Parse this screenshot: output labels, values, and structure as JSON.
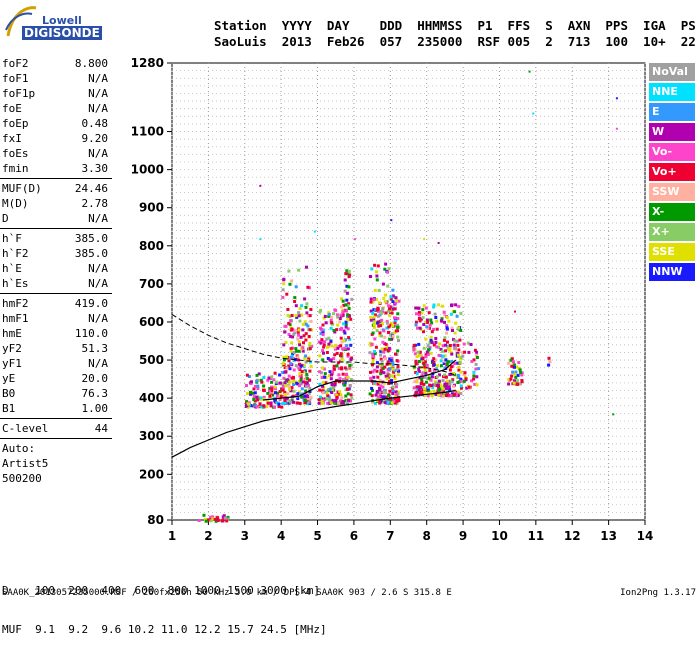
{
  "logo": {
    "line1": "Lowell",
    "line2": "DIGISONDE"
  },
  "header": {
    "labels": [
      "Station",
      "YYYY",
      "DAY",
      "DDD",
      "HHMMSS",
      "P1",
      "FFS",
      "S",
      "AXN",
      "PPS",
      "IGA",
      "PS"
    ],
    "values": [
      "SaoLuis",
      "2013",
      "Feb26",
      "057",
      "235000",
      "RSF",
      "005",
      "2",
      "713",
      "100",
      "10+",
      "22"
    ]
  },
  "params": {
    "group1": [
      {
        "name": "foF2",
        "value": "8.800"
      },
      {
        "name": "foF1",
        "value": "N/A"
      },
      {
        "name": "foF1p",
        "value": "N/A"
      },
      {
        "name": "foE",
        "value": "N/A"
      },
      {
        "name": "foEp",
        "value": "0.48"
      },
      {
        "name": "fxI",
        "value": "9.20"
      },
      {
        "name": "foEs",
        "value": "N/A"
      },
      {
        "name": "fmin",
        "value": "3.30"
      }
    ],
    "group2": [
      {
        "name": "MUF(D)",
        "value": "24.46"
      },
      {
        "name": "M(D)",
        "value": "2.78"
      },
      {
        "name": "D",
        "value": "N/A"
      }
    ],
    "group3": [
      {
        "name": "h`F",
        "value": "385.0"
      },
      {
        "name": "h`F2",
        "value": "385.0"
      },
      {
        "name": "h`E",
        "value": "N/A"
      },
      {
        "name": "h`Es",
        "value": "N/A"
      }
    ],
    "group4": [
      {
        "name": "hmF2",
        "value": "419.0"
      },
      {
        "name": "hmF1",
        "value": "N/A"
      },
      {
        "name": "hmE",
        "value": "110.0"
      },
      {
        "name": "yF2",
        "value": "51.3"
      },
      {
        "name": "yF1",
        "value": "N/A"
      },
      {
        "name": "yE",
        "value": "20.0"
      },
      {
        "name": "B0",
        "value": "76.3"
      },
      {
        "name": "B1",
        "value": "1.00"
      }
    ],
    "group5": [
      {
        "name": "C-level",
        "value": "44"
      }
    ],
    "auto": [
      "Auto:",
      "Artist5",
      "500200"
    ]
  },
  "legend": [
    {
      "label": "NoVal",
      "color": "#a0a0a0"
    },
    {
      "label": "NNE",
      "color": "#00e0ff"
    },
    {
      "label": "E",
      "color": "#3399ff"
    },
    {
      "label": "W",
      "color": "#b000b0"
    },
    {
      "label": "Vo-",
      "color": "#ff44cc"
    },
    {
      "label": "Vo+",
      "color": "#ee0033"
    },
    {
      "label": "SSW",
      "color": "#ffb0a0"
    },
    {
      "label": "X-",
      "color": "#009900"
    },
    {
      "label": "X+",
      "color": "#88cc66"
    },
    {
      "label": "SSE",
      "color": "#e0e000"
    },
    {
      "label": "NNW",
      "color": "#1a1aff"
    }
  ],
  "muf_table": {
    "d_label": "D",
    "d_values": [
      "100",
      "200",
      "400",
      "600",
      "800",
      "1000",
      "1500",
      "3000"
    ],
    "d_unit": "[km]",
    "muf_label": "MUF",
    "muf_values": [
      "9.1",
      "9.2",
      "9.6",
      "10.2",
      "11.0",
      "12.2",
      "15.7",
      "24.5"
    ],
    "muf_unit": "[MHz]"
  },
  "footer": "SAA0K_2013057235000.RSF / 260fx256h 50 kHz 5.0 km / DPS-4 SAA0K 903 / 2.6 S 315.8 E",
  "version": "Ion2Png 1.3.17",
  "chart_data": {
    "type": "scatter",
    "xlim": [
      1,
      14
    ],
    "ylim": [
      80,
      1280
    ],
    "xticks": [
      "1",
      "2",
      "3",
      "4",
      "5",
      "6",
      "7",
      "8",
      "9",
      "10",
      "11",
      "12",
      "13",
      "14"
    ],
    "yticks": [
      {
        "v": 80,
        "label": "80"
      },
      {
        "v": 200,
        "label": "200"
      },
      {
        "v": 300,
        "label": "300"
      },
      {
        "v": 400,
        "label": "400"
      },
      {
        "v": 500,
        "label": "500"
      },
      {
        "v": 600,
        "label": "600"
      },
      {
        "v": 700,
        "label": "700"
      },
      {
        "v": 800,
        "label": "800"
      },
      {
        "v": 900,
        "label": "900"
      },
      {
        "v": 1000,
        "label": "1000"
      },
      {
        "v": 1100,
        "label": "1100"
      },
      {
        "v": 1280,
        "label": "1280"
      }
    ],
    "grid": true,
    "clusters": [
      {
        "f0": 1.7,
        "f1": 2.5,
        "h0": 80,
        "h1": 100,
        "n": 30
      },
      {
        "f0": 3.0,
        "f1": 4.0,
        "h0": 380,
        "h1": 470,
        "n": 130
      },
      {
        "f0": 4.0,
        "f1": 4.8,
        "h0": 390,
        "h1": 620,
        "n": 230
      },
      {
        "f0": 4.0,
        "f1": 4.8,
        "h0": 620,
        "h1": 760,
        "n": 35
      },
      {
        "f0": 5.0,
        "f1": 5.9,
        "h0": 390,
        "h1": 640,
        "n": 260
      },
      {
        "f0": 5.6,
        "f1": 5.9,
        "h0": 620,
        "h1": 740,
        "n": 30
      },
      {
        "f0": 6.4,
        "f1": 7.2,
        "h0": 390,
        "h1": 650,
        "n": 300
      },
      {
        "f0": 6.4,
        "f1": 7.2,
        "h0": 650,
        "h1": 760,
        "n": 40
      },
      {
        "f0": 7.6,
        "f1": 8.9,
        "h0": 410,
        "h1": 650,
        "n": 380
      },
      {
        "f0": 8.9,
        "f1": 9.4,
        "h0": 430,
        "h1": 560,
        "n": 40
      },
      {
        "f0": 10.2,
        "f1": 10.6,
        "h0": 440,
        "h1": 510,
        "n": 40
      },
      {
        "f0": 11.3,
        "f1": 11.4,
        "h0": 490,
        "h1": 530,
        "n": 3
      }
    ],
    "isolated_points": [
      {
        "f": 3.4,
        "h": 960,
        "c": 3
      },
      {
        "f": 3.4,
        "h": 820,
        "c": 1
      },
      {
        "f": 4.9,
        "h": 840,
        "c": 1
      },
      {
        "f": 7.0,
        "h": 870,
        "c": 10
      },
      {
        "f": 6.0,
        "h": 820,
        "c": 4
      },
      {
        "f": 7.9,
        "h": 820,
        "c": 9
      },
      {
        "f": 8.3,
        "h": 810,
        "c": 3
      },
      {
        "f": 10.8,
        "h": 1260,
        "c": 7
      },
      {
        "f": 10.9,
        "h": 1150,
        "c": 1
      },
      {
        "f": 13.2,
        "h": 1190,
        "c": 10
      },
      {
        "f": 13.2,
        "h": 1110,
        "c": 4
      },
      {
        "f": 13.1,
        "h": 360,
        "c": 7
      },
      {
        "f": 10.4,
        "h": 630,
        "c": 5
      }
    ],
    "virtual_height_trace": {
      "f": [
        3.5,
        4.0,
        4.5,
        5.0,
        5.5,
        6.0,
        6.5,
        7.0,
        7.5,
        8.0,
        8.5,
        8.8
      ],
      "h": [
        395,
        400,
        405,
        430,
        445,
        445,
        445,
        440,
        450,
        460,
        475,
        500
      ]
    },
    "extrapolation_dashed": {
      "f": [
        1.0,
        1.5,
        2.0,
        2.5,
        3.0,
        3.5,
        4.0,
        4.5,
        5.0,
        5.5,
        6.0,
        6.5,
        7.0,
        7.5,
        8.0,
        8.5,
        8.8
      ],
      "h": [
        620,
        590,
        565,
        545,
        530,
        515,
        505,
        500,
        495,
        495,
        495,
        490,
        490,
        485,
        480,
        470,
        460
      ]
    },
    "profile_solid": {
      "f": [
        1.0,
        1.5,
        2.0,
        2.5,
        3.0,
        3.5,
        4.0,
        4.5,
        5.0,
        5.5,
        6.0,
        6.5,
        7.0,
        7.5,
        8.0,
        8.5,
        8.8
      ],
      "h": [
        245,
        270,
        290,
        310,
        325,
        340,
        350,
        360,
        370,
        378,
        385,
        393,
        400,
        405,
        410,
        415,
        420
      ]
    }
  }
}
